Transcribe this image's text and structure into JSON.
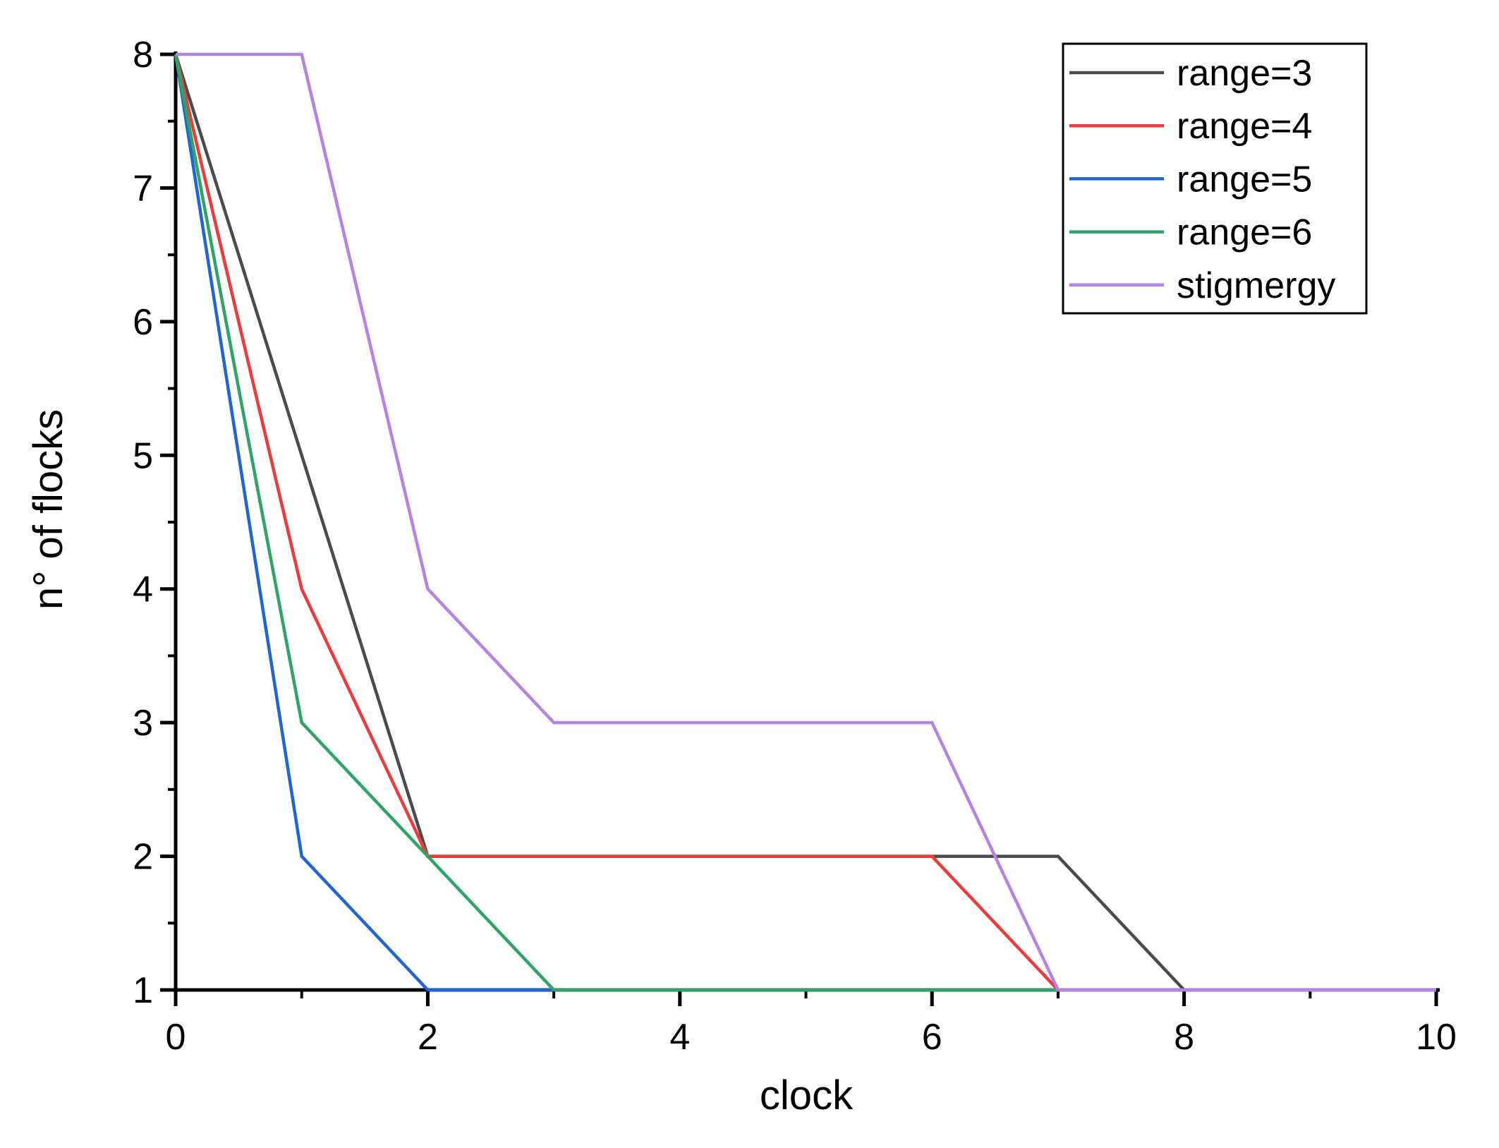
{
  "figure": {
    "background": "#ffffff",
    "axis_color": "#000000"
  },
  "chart_data": {
    "type": "line",
    "title": "",
    "xlabel": "clock",
    "ylabel": "n° of flocks",
    "xlim": [
      0,
      10
    ],
    "ylim": [
      1,
      8
    ],
    "grid": false,
    "legend_position": "top-right",
    "x_major_ticks": [
      0,
      2,
      4,
      6,
      8,
      10
    ],
    "x_minor_ticks": [
      1,
      3,
      5,
      7,
      9
    ],
    "y_major_ticks": [
      8,
      7,
      6,
      5,
      4,
      3,
      2,
      1
    ],
    "y_minor_ticks": [
      7.5,
      6.5,
      5.5,
      4.5,
      3.5,
      2.5,
      1.5
    ],
    "series": [
      {
        "name": "range=3",
        "color": "#4b4b4b",
        "points": [
          [
            0,
            8
          ],
          [
            1,
            5
          ],
          [
            2,
            2
          ],
          [
            7,
            2
          ],
          [
            8,
            1
          ],
          [
            10,
            1
          ]
        ]
      },
      {
        "name": "range=4",
        "color": "#ee3a3a",
        "points": [
          [
            0,
            8
          ],
          [
            1,
            4
          ],
          [
            2,
            2
          ],
          [
            6,
            2
          ],
          [
            7,
            1
          ],
          [
            10,
            1
          ]
        ]
      },
      {
        "name": "range=5",
        "color": "#1f65d5",
        "points": [
          [
            0,
            8
          ],
          [
            1,
            2
          ],
          [
            2,
            1
          ],
          [
            10,
            1
          ]
        ]
      },
      {
        "name": "range=6",
        "color": "#2ca566",
        "points": [
          [
            0,
            8
          ],
          [
            1,
            3
          ],
          [
            2,
            2
          ],
          [
            3,
            1
          ],
          [
            10,
            1
          ]
        ]
      },
      {
        "name": "stigmergy",
        "color": "#b483e4",
        "points": [
          [
            0,
            8
          ],
          [
            1,
            8
          ],
          [
            2,
            4
          ],
          [
            3,
            3
          ],
          [
            6,
            3
          ],
          [
            7,
            1
          ],
          [
            10,
            1
          ]
        ]
      }
    ]
  }
}
